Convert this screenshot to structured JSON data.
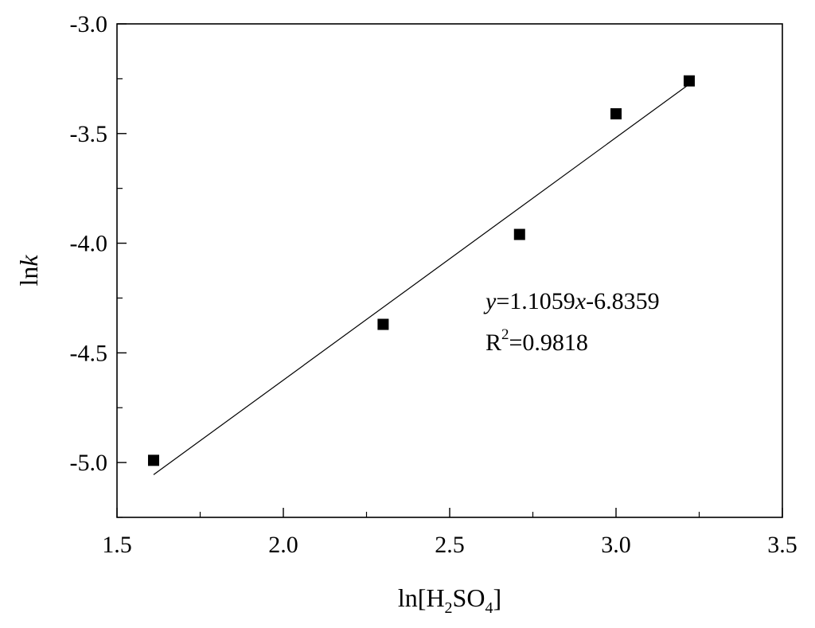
{
  "chart_data": {
    "type": "scatter",
    "xlabel_parts": {
      "pre": "ln[H",
      "sub1": "2",
      "mid": "SO",
      "sub2": "4",
      "post": "]"
    },
    "ylabel_parts": {
      "pre": "ln",
      "italic": "k"
    },
    "xlim": [
      1.5,
      3.5
    ],
    "ylim": [
      -5.25,
      -3.0
    ],
    "x_ticks": [
      1.5,
      2.0,
      2.5,
      3.0,
      3.5
    ],
    "x_tick_labels": [
      "1.5",
      "2.0",
      "2.5",
      "3.0",
      "3.5"
    ],
    "y_ticks": [
      -3.0,
      -3.5,
      -4.0,
      -4.5,
      -5.0
    ],
    "y_tick_labels": [
      "-3.0",
      "-3.5",
      "-4.0",
      "-4.5",
      "-5.0"
    ],
    "grid": false,
    "series": [
      {
        "marker": "square",
        "x": [
          1.61,
          2.3,
          2.71,
          3.0,
          3.22
        ],
        "y": [
          -4.99,
          -4.37,
          -3.96,
          -3.41,
          -3.26
        ]
      }
    ],
    "fit_line": {
      "slope": 1.1059,
      "intercept": -6.8359,
      "x_range": [
        1.61,
        3.22
      ]
    },
    "annotations": {
      "equation": {
        "y": "y",
        "eq": "=1.1059",
        "x": "x",
        "rest": "-6.8359"
      },
      "r2": {
        "R": "R",
        "sup": "2",
        "rest": "=0.9818"
      }
    }
  }
}
